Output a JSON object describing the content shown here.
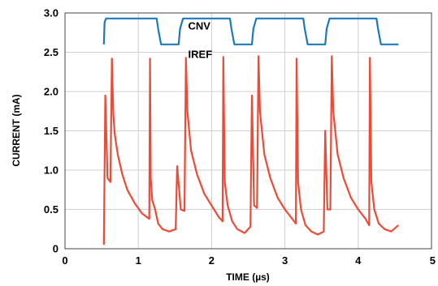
{
  "chart_data": {
    "type": "line",
    "xlabel": "TIME (µs)",
    "ylabel": "CURRENT (mA)",
    "xlim": [
      0,
      5
    ],
    "ylim": [
      0,
      3.0
    ],
    "x_ticks": [
      "0",
      "1",
      "2",
      "3",
      "4",
      "5"
    ],
    "y_ticks": [
      "0",
      "0.5",
      "1.0",
      "1.5",
      "2.0",
      "2.5",
      "3.0"
    ],
    "grid": true,
    "annotations": [
      {
        "text": "CNV",
        "x": 1.68,
        "y": 2.79
      },
      {
        "text": "IREF",
        "x": 1.68,
        "y": 2.43
      }
    ],
    "series": [
      {
        "name": "CNV",
        "color": "#1d7ab8",
        "x": [
          0.53,
          0.54,
          0.56,
          1.25,
          1.27,
          1.31,
          1.55,
          1.57,
          1.61,
          2.25,
          2.27,
          2.31,
          2.55,
          2.57,
          2.61,
          3.25,
          3.27,
          3.31,
          3.55,
          3.57,
          3.61,
          4.25,
          4.27,
          4.31,
          4.55
        ],
        "y": [
          2.6,
          2.88,
          2.93,
          2.93,
          2.8,
          2.6,
          2.6,
          2.8,
          2.93,
          2.93,
          2.8,
          2.6,
          2.6,
          2.8,
          2.93,
          2.93,
          2.8,
          2.6,
          2.6,
          2.8,
          2.93,
          2.93,
          2.8,
          2.6,
          2.6
        ]
      },
      {
        "name": "IREF",
        "color": "#ee4a36",
        "x": [
          0.53,
          0.55,
          0.58,
          0.62,
          0.64,
          0.66,
          0.68,
          0.72,
          0.78,
          0.85,
          0.95,
          1.05,
          1.15,
          1.16,
          1.17,
          1.19,
          1.23,
          1.27,
          1.33,
          1.42,
          1.51,
          1.53,
          1.58,
          1.63,
          1.65,
          1.67,
          1.72,
          1.8,
          1.9,
          2.0,
          2.1,
          2.15,
          2.16,
          2.18,
          2.22,
          2.28,
          2.35,
          2.45,
          2.53,
          2.55,
          2.58,
          2.62,
          2.64,
          2.66,
          2.72,
          2.8,
          2.9,
          3.0,
          3.1,
          3.15,
          3.16,
          3.18,
          3.22,
          3.28,
          3.36,
          3.45,
          3.53,
          3.55,
          3.58,
          3.62,
          3.64,
          3.66,
          3.72,
          3.8,
          3.9,
          4.0,
          4.1,
          4.15,
          4.16,
          4.18,
          4.22,
          4.28,
          4.36,
          4.45,
          4.55
        ],
        "y": [
          0.05,
          1.95,
          0.9,
          0.85,
          2.42,
          1.7,
          1.45,
          1.2,
          0.95,
          0.75,
          0.58,
          0.45,
          0.38,
          2.42,
          0.9,
          0.62,
          0.5,
          0.32,
          0.25,
          0.22,
          0.25,
          1.05,
          0.5,
          0.48,
          2.43,
          1.75,
          1.25,
          0.95,
          0.7,
          0.55,
          0.4,
          0.35,
          2.44,
          0.85,
          0.55,
          0.35,
          0.25,
          0.2,
          0.28,
          1.95,
          0.55,
          0.52,
          2.45,
          1.75,
          1.2,
          0.9,
          0.65,
          0.5,
          0.38,
          0.32,
          2.42,
          0.85,
          0.5,
          0.3,
          0.22,
          0.18,
          0.22,
          1.5,
          0.5,
          0.5,
          2.45,
          1.75,
          1.2,
          0.9,
          0.65,
          0.5,
          0.38,
          0.3,
          2.43,
          0.85,
          0.5,
          0.32,
          0.25,
          0.22,
          0.3
        ]
      }
    ]
  }
}
